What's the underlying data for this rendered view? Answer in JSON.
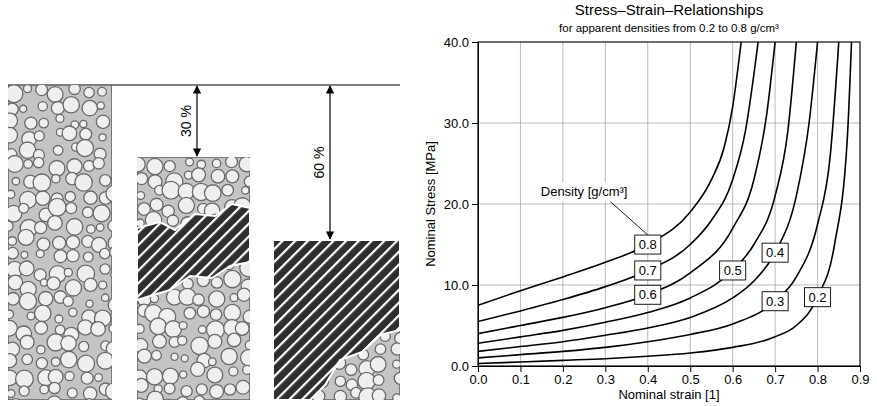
{
  "chart_data": {
    "type": "line",
    "title": "Stress–Strain–Relationships",
    "subtitle": "for apparent densities from 0.2 to 0.8 g/cm³",
    "x_label": "Nominal strain [1]",
    "y_label": "Nominal Stress [MPa]",
    "legend_title": "Density [g/cm³]",
    "xlim": [
      0,
      0.9
    ],
    "ylim": [
      0,
      40
    ],
    "xticks": [
      {
        "value": 0,
        "label": "0.0"
      },
      0.1,
      0.2,
      0.3,
      0.4,
      0.5,
      0.6,
      0.7,
      0.8,
      0.9
    ],
    "yticks": [
      {
        "value": 0,
        "label": "0.0"
      },
      {
        "value": 10,
        "label": "10.0"
      },
      {
        "value": 20,
        "label": "20.0"
      },
      {
        "value": 30,
        "label": "30.0"
      },
      {
        "value": 40,
        "label": "40.0"
      }
    ],
    "grid": true,
    "series": [
      {
        "name": "0.2",
        "color": "#000000",
        "x": [
          0,
          0.1,
          0.2,
          0.3,
          0.4,
          0.5,
          0.6,
          0.7,
          0.75,
          0.8,
          0.84,
          0.87,
          0.88
        ],
        "values": [
          0.3,
          0.5,
          0.7,
          0.9,
          1.2,
          1.6,
          2.3,
          3.6,
          5,
          8.5,
          15,
          28,
          40
        ]
      },
      {
        "name": "0.3",
        "color": "#000000",
        "x": [
          0,
          0.1,
          0.2,
          0.3,
          0.4,
          0.5,
          0.6,
          0.7,
          0.75,
          0.8,
          0.83,
          0.85
        ],
        "values": [
          1,
          1.4,
          1.8,
          2.3,
          3,
          3.9,
          5.2,
          8,
          11,
          17.5,
          26,
          40
        ]
      },
      {
        "name": "0.4",
        "color": "#000000",
        "x": [
          0,
          0.1,
          0.2,
          0.3,
          0.4,
          0.5,
          0.6,
          0.65,
          0.7,
          0.75,
          0.78,
          0.8
        ],
        "values": [
          1.8,
          2.4,
          3,
          3.8,
          4.7,
          6,
          8.4,
          10.5,
          14,
          21,
          30,
          40
        ]
      },
      {
        "name": "0.5",
        "color": "#000000",
        "x": [
          0,
          0.1,
          0.2,
          0.3,
          0.4,
          0.5,
          0.6,
          0.65,
          0.7,
          0.73,
          0.75
        ],
        "values": [
          2.8,
          3.6,
          4.4,
          5.4,
          6.6,
          8.4,
          11.8,
          15,
          21,
          29,
          40
        ]
      },
      {
        "name": "0.6",
        "color": "#000000",
        "x": [
          0,
          0.1,
          0.2,
          0.3,
          0.4,
          0.5,
          0.6,
          0.65,
          0.68,
          0.7
        ],
        "values": [
          4,
          5,
          6,
          7.2,
          8.8,
          11.5,
          17,
          23,
          31,
          40
        ]
      },
      {
        "name": "0.7",
        "color": "#000000",
        "x": [
          0,
          0.1,
          0.2,
          0.3,
          0.4,
          0.5,
          0.55,
          0.6,
          0.63,
          0.66
        ],
        "values": [
          5.5,
          6.8,
          8.2,
          9.8,
          11.8,
          15,
          18,
          23,
          29,
          40
        ]
      },
      {
        "name": "0.8",
        "color": "#000000",
        "x": [
          0,
          0.1,
          0.2,
          0.3,
          0.4,
          0.5,
          0.55,
          0.58,
          0.6,
          0.62
        ],
        "values": [
          7.5,
          9.3,
          11,
          12.8,
          15,
          19,
          23,
          27,
          32,
          40
        ]
      }
    ]
  },
  "illustration": {
    "compression_labels": [
      "30 %",
      "60 %"
    ]
  }
}
